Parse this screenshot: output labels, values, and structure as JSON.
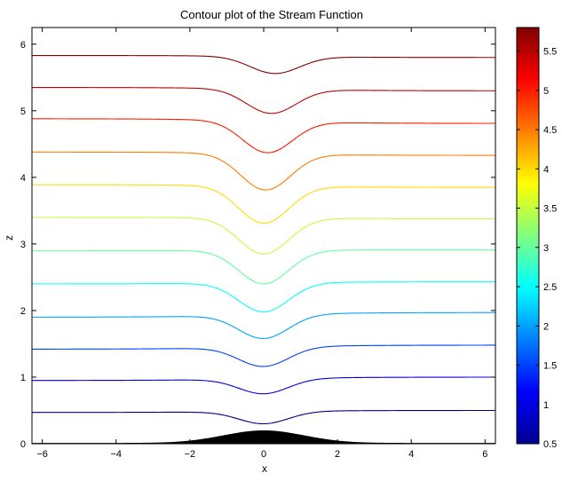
{
  "chart_data": {
    "type": "contour",
    "title": "Contour plot of the Stream Function",
    "xlabel": "x",
    "ylabel": "z",
    "xlim": [
      -6.28,
      6.28
    ],
    "ylim": [
      0,
      6.25
    ],
    "xticks": [
      -6,
      -4,
      -2,
      0,
      2,
      4,
      6
    ],
    "yticks": [
      0,
      1,
      2,
      3,
      4,
      5,
      6
    ],
    "grid": false,
    "colormap": "jet",
    "colorbar": {
      "clim": [
        0.5,
        5.8
      ],
      "ticks": [
        0.5,
        1,
        1.5,
        2,
        2.5,
        3,
        3.5,
        4,
        4.5,
        5,
        5.5
      ]
    },
    "terrain": {
      "description_fill": "#000000",
      "peak_height": 0.2,
      "shape": "gaussian hill centred at x = 0"
    },
    "levels": [
      {
        "value": 0.5,
        "far_left": 0.47,
        "far_right": 0.5,
        "min": 0.3,
        "min_x": 0.0
      },
      {
        "value": 1.0,
        "far_left": 0.95,
        "far_right": 1.0,
        "min": 0.75,
        "min_x": 0.0
      },
      {
        "value": 1.5,
        "far_left": 1.42,
        "far_right": 1.48,
        "min": 1.16,
        "min_x": 0.0
      },
      {
        "value": 2.0,
        "far_left": 1.9,
        "far_right": 1.97,
        "min": 1.58,
        "min_x": 0.0
      },
      {
        "value": 2.5,
        "far_left": 2.4,
        "far_right": 2.43,
        "min": 1.98,
        "min_x": 0.0
      },
      {
        "value": 3.0,
        "far_left": 2.9,
        "far_right": 2.91,
        "min": 2.4,
        "min_x": 0.0
      },
      {
        "value": 3.5,
        "far_left": 3.4,
        "far_right": 3.38,
        "min": 2.85,
        "min_x": 0.0
      },
      {
        "value": 4.0,
        "far_left": 3.89,
        "far_right": 3.85,
        "min": 3.31,
        "min_x": 0.0
      },
      {
        "value": 4.5,
        "far_left": 4.38,
        "far_right": 4.33,
        "min": 3.81,
        "min_x": 0.05
      },
      {
        "value": 5.0,
        "far_left": 4.88,
        "far_right": 4.81,
        "min": 4.37,
        "min_x": 0.1
      },
      {
        "value": 5.5,
        "far_left": 5.35,
        "far_right": 5.3,
        "min": 4.96,
        "min_x": 0.2
      },
      {
        "value": 5.8,
        "far_left": 5.83,
        "far_right": 5.8,
        "min": 5.56,
        "min_x": 0.3
      }
    ]
  }
}
